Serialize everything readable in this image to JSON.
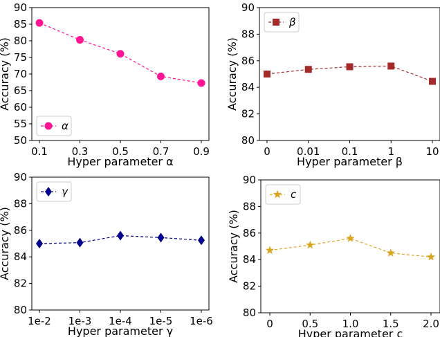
{
  "chart_data": [
    {
      "type": "line",
      "xlabel": "Hyper parameter α",
      "ylabel": "Accuracy (%)",
      "categories": [
        "0.1",
        "0.3",
        "0.5",
        "0.7",
        "0.9"
      ],
      "ylim": [
        50,
        90
      ],
      "yticks": [
        50,
        55,
        60,
        65,
        70,
        75,
        80,
        85,
        90
      ],
      "legend_position": "lower-left",
      "grid": false,
      "series": [
        {
          "name": "α",
          "color": "#ff1493",
          "marker": "circle",
          "line_style": "dashed",
          "values": [
            85.4,
            80.3,
            76.1,
            69.3,
            67.3
          ]
        }
      ]
    },
    {
      "type": "line",
      "xlabel": "Hyper parameter β",
      "ylabel": "Accuracy (%)",
      "categories": [
        "0",
        "0.01",
        "0.1",
        "1",
        "10"
      ],
      "ylim": [
        80,
        90
      ],
      "yticks": [
        80,
        82,
        84,
        86,
        88,
        90
      ],
      "legend_position": "upper-left",
      "grid": false,
      "series": [
        {
          "name": "β",
          "color": "#a52a2a",
          "marker": "square",
          "line_style": "dashed",
          "values": [
            85.0,
            85.35,
            85.55,
            85.6,
            84.45
          ]
        }
      ]
    },
    {
      "type": "line",
      "xlabel": "Hyper parameter γ",
      "ylabel": "Accuracy (%)",
      "categories": [
        "1e-2",
        "1e-3",
        "1e-4",
        "1e-5",
        "1e-6"
      ],
      "ylim": [
        80,
        90
      ],
      "yticks": [
        80,
        82,
        84,
        86,
        88,
        90
      ],
      "legend_position": "upper-left",
      "grid": false,
      "series": [
        {
          "name": "γ",
          "color": "#00008b",
          "marker": "diamond",
          "line_style": "dashed",
          "values": [
            85.0,
            85.07,
            85.6,
            85.45,
            85.25
          ]
        }
      ]
    },
    {
      "type": "line",
      "xlabel": "Hyper parameter c",
      "ylabel": "Accuracy (%)",
      "categories": [
        "0",
        "0.5",
        "1.0",
        "1.5",
        "2.0"
      ],
      "ylim": [
        80,
        90
      ],
      "yticks": [
        80,
        82,
        84,
        86,
        88,
        90
      ],
      "legend_position": "upper-left",
      "grid": false,
      "series": [
        {
          "name": "c",
          "color": "#daa520",
          "marker": "star",
          "line_style": "dashed",
          "values": [
            84.7,
            85.1,
            85.6,
            84.5,
            84.2
          ]
        }
      ]
    }
  ]
}
